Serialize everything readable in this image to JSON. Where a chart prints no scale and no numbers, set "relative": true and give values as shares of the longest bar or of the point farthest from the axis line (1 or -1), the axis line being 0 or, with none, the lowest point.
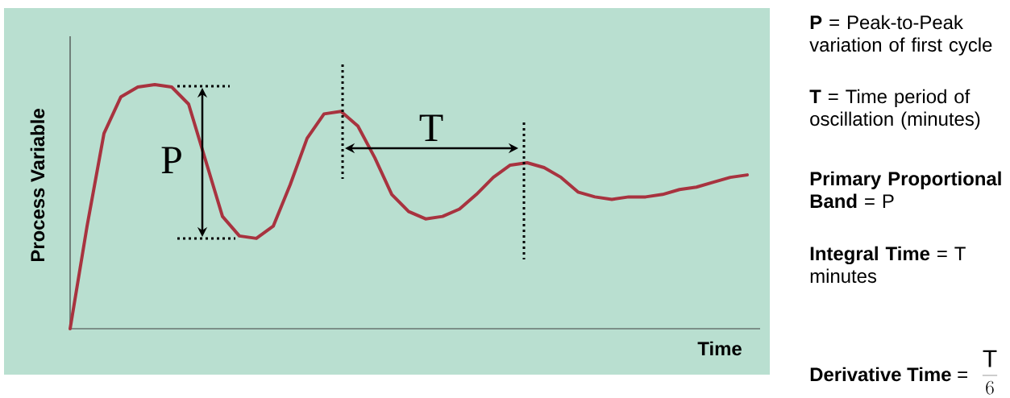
{
  "chart_data": {
    "type": "line",
    "relative": true,
    "xlabel": "Time",
    "ylabel": "Process Variable",
    "color": "#a8333f",
    "categories": [
      null,
      null,
      null,
      null,
      null,
      null,
      null,
      null,
      null,
      null,
      null,
      null,
      null,
      null,
      null,
      null,
      null,
      null,
      null,
      null,
      null,
      null,
      null,
      null,
      null,
      null,
      null,
      null,
      null,
      null,
      null,
      null,
      null,
      null,
      null,
      null,
      null,
      null,
      null,
      null,
      null
    ],
    "values": [
      0,
      0.42,
      0.8,
      0.95,
      0.99,
      1,
      0.99,
      0.92,
      0.69,
      0.46,
      0.38,
      0.37,
      0.42,
      0.59,
      0.78,
      0.88,
      0.89,
      0.83,
      0.7,
      0.55,
      0.48,
      0.45,
      0.46,
      0.49,
      0.55,
      0.62,
      0.67,
      0.68,
      0.66,
      0.62,
      0.56,
      0.54,
      0.53,
      0.54,
      0.54,
      0.55,
      0.57,
      0.58,
      0.6,
      0.62,
      0.63
    ],
    "annotations": [
      "P",
      "T",
      "**P** = Peak-to-Peak variation of first cycle",
      "**T** = Time period of oscillation (minutes)",
      "**Primary Proportional Band** = P",
      "**Integral Time** = T minutes",
      "**Derivative Time** =",
      "\\frac{\\mathrm{T}}{6}"
    ]
  }
}
